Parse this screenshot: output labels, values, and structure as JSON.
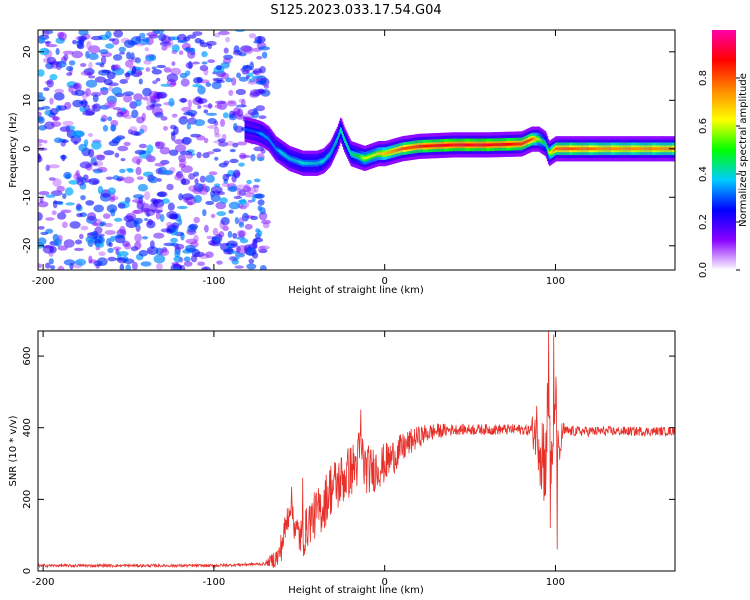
{
  "title": "S125.2023.033.17.54.G04",
  "colors": {
    "snr_line": "#e8302a",
    "spec_dot": "#7a2cff",
    "spec_bg": "#ffffff",
    "axes": "#000000"
  },
  "chart_data": [
    {
      "type": "heatmap",
      "xlabel": "Height of straight line (km)",
      "ylabel": "Frequency (Hz)",
      "xlim": [
        -203,
        170
      ],
      "ylim": [
        -25,
        24.5
      ],
      "xticks": [
        -200,
        -100,
        0,
        100
      ],
      "yticks": [
        -20,
        -10,
        0,
        10,
        20
      ],
      "colorbar": {
        "label": "Normalized spectral amplitude",
        "range": [
          0,
          1
        ],
        "ticks": [
          "0.0",
          "0.2",
          "0.4",
          "0.6",
          "0.8"
        ],
        "colormap": [
          "#ffffff",
          "#8800ff",
          "#0000ff",
          "#00ccff",
          "#00ff00",
          "#ffff00",
          "#ff8800",
          "#ff0000",
          "#ff00aa"
        ]
      },
      "noise_region_x": [
        -203,
        -72
      ],
      "ridge": {
        "x": [
          -82,
          -76,
          -72,
          -68,
          -64,
          -60,
          -56,
          -52,
          -48,
          -44,
          -40,
          -36,
          -32,
          -28,
          -26,
          -24,
          -20,
          -16,
          -12,
          -8,
          -4,
          0,
          10,
          20,
          40,
          60,
          80,
          86,
          90,
          94,
          96,
          100,
          110,
          130,
          150,
          170
        ],
        "y": [
          4,
          3.5,
          3,
          2,
          0,
          -1,
          -2,
          -2.5,
          -3,
          -3,
          -3,
          -2.5,
          -1,
          2,
          4,
          2,
          -1,
          -1.5,
          -2,
          -1.5,
          -1,
          -1,
          0,
          0.5,
          0.8,
          0.8,
          1,
          2,
          2,
          1,
          -1,
          0,
          0,
          0,
          0,
          0
        ],
        "peak_amplitude": [
          0.3,
          0.3,
          0.35,
          0.35,
          0.35,
          0.4,
          0.4,
          0.4,
          0.4,
          0.4,
          0.4,
          0.4,
          0.4,
          0.45,
          0.45,
          0.45,
          0.45,
          0.5,
          0.6,
          0.6,
          0.65,
          0.7,
          0.8,
          0.85,
          0.9,
          0.9,
          0.85,
          0.8,
          0.6,
          0.45,
          0.6,
          0.8,
          0.8,
          0.75,
          0.75,
          0.75
        ]
      }
    },
    {
      "type": "line",
      "xlabel": "Height of straight line (km)",
      "ylabel": "SNR (10 * v/v)",
      "xlim": [
        -203,
        170
      ],
      "ylim": [
        0,
        670
      ],
      "xticks": [
        -200,
        -100,
        0,
        100
      ],
      "yticks": [
        0,
        200,
        400,
        600
      ],
      "envelope": {
        "x": [
          -203,
          -100,
          -70,
          -62,
          -58,
          -55,
          -52,
          -48,
          -44,
          -40,
          -36,
          -32,
          -28,
          -24,
          -20,
          -16,
          -14,
          -12,
          -8,
          -4,
          0,
          5,
          10,
          15,
          20,
          25,
          30,
          40,
          50,
          60,
          70,
          80,
          90,
          94,
          96,
          98,
          100,
          102,
          104,
          110,
          130,
          150,
          170
        ],
        "y": [
          15,
          15,
          20,
          40,
          120,
          200,
          110,
          90,
          140,
          160,
          180,
          230,
          240,
          260,
          280,
          300,
          360,
          290,
          280,
          290,
          300,
          320,
          340,
          360,
          375,
          385,
          390,
          395,
          395,
          395,
          395,
          395,
          390,
          300,
          500,
          250,
          500,
          300,
          390,
          390,
          390,
          390,
          390
        ]
      },
      "noise_amplitude": {
        "x": [
          -203,
          -70,
          -60,
          -30,
          -10,
          20,
          40,
          85,
          92,
          106,
          170
        ],
        "y": [
          4,
          4,
          45,
          80,
          70,
          30,
          15,
          15,
          150,
          15,
          12
        ]
      },
      "spikes": [
        {
          "x": -48,
          "y": 260
        },
        {
          "x": -14,
          "y": 450
        },
        {
          "x": 96,
          "y": 670
        },
        {
          "x": 99,
          "y": 660
        },
        {
          "x": 101,
          "y": 60
        },
        {
          "x": 97,
          "y": 120
        }
      ]
    }
  ]
}
